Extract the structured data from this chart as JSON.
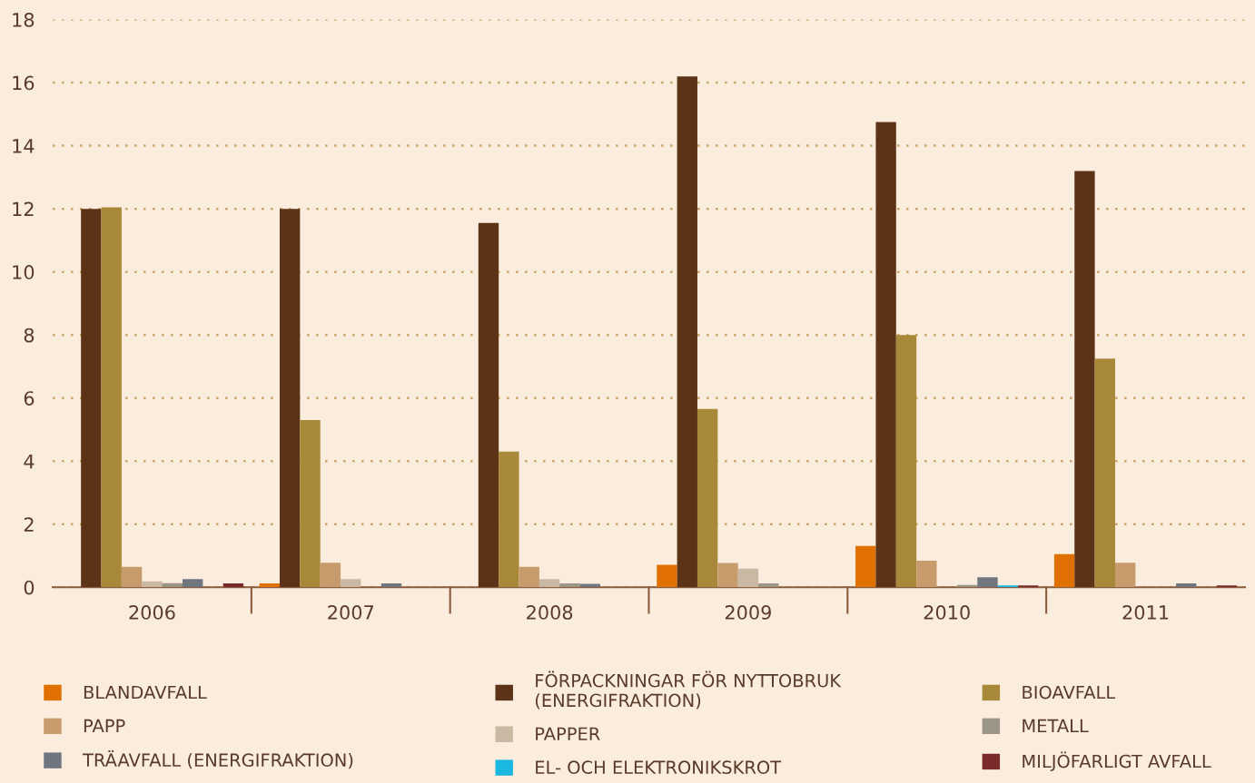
{
  "chart_data": {
    "type": "bar",
    "categories": [
      "2006",
      "2007",
      "2008",
      "2009",
      "2010",
      "2011"
    ],
    "series": [
      {
        "name": "BLANDAVFALL",
        "color": "#e07000",
        "values": [
          0,
          0.12,
          0,
          0.71,
          1.31,
          1.05
        ]
      },
      {
        "name": "FÖRPACKNINGAR FÖR NYTTOBRUK\n(ENERGIFRAKTION)",
        "color": "#5c3317",
        "values": [
          12.0,
          12.0,
          11.55,
          16.2,
          14.75,
          13.2
        ]
      },
      {
        "name": "BIOAVFALL",
        "color": "#a8893a",
        "values": [
          12.05,
          5.3,
          4.3,
          5.65,
          8.0,
          7.25
        ]
      },
      {
        "name": "PAPP",
        "color": "#c79b6c",
        "values": [
          0.65,
          0.78,
          0.65,
          0.77,
          0.84,
          0.78
        ]
      },
      {
        "name": "PAPPER",
        "color": "#c8b8a4",
        "values": [
          0.19,
          0.26,
          0.26,
          0.59,
          null,
          null
        ]
      },
      {
        "name": "METALL",
        "color": "#9a9585",
        "values": [
          0.13,
          0,
          0.12,
          0.12,
          0.07,
          0
        ]
      },
      {
        "name": "TRÄAVFALL (ENERGIFRAKTION)",
        "color": "#6f7680",
        "values": [
          0.26,
          0.12,
          0.11,
          0,
          0.32,
          0.12
        ]
      },
      {
        "name": "EL- OCH ELEKTRONIKSKROT",
        "color": "#1ab8e0",
        "values": [
          0,
          0,
          0,
          0,
          0.06,
          0
        ]
      },
      {
        "name": "MILJÖFARLIGT AVFALL",
        "color": "#7a2a2a",
        "values": [
          0.12,
          0,
          0,
          0,
          0.06,
          0.06
        ]
      }
    ],
    "ylim": [
      0,
      18
    ],
    "yticks": [
      0,
      2,
      4,
      6,
      8,
      10,
      12,
      14,
      16,
      18
    ],
    "grid": "y",
    "legend": "bottom"
  }
}
